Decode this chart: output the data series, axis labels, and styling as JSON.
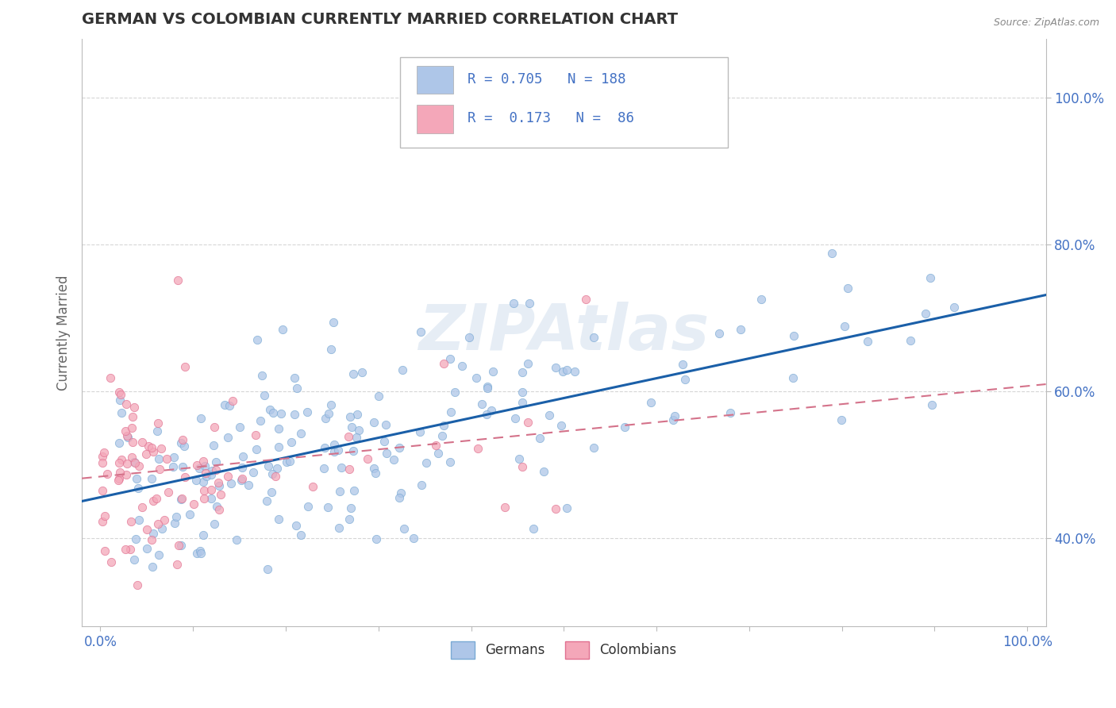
{
  "title": "GERMAN VS COLOMBIAN CURRENTLY MARRIED CORRELATION CHART",
  "source": "Source: ZipAtlas.com",
  "ylabel": "Currently Married",
  "xlabel": "",
  "xlim": [
    -0.02,
    1.02
  ],
  "ylim": [
    0.28,
    1.08
  ],
  "yticks": [
    0.4,
    0.6,
    0.8,
    1.0
  ],
  "ytick_labels": [
    "40.0%",
    "60.0%",
    "80.0%",
    "100.0%"
  ],
  "xtick_labels": [
    "0.0%",
    "",
    "",
    "",
    "",
    "",
    "",
    "",
    "",
    "",
    "100.0%"
  ],
  "german_color": "#aec6e8",
  "german_edge_color": "#7aaad4",
  "colombian_color": "#f4a7b9",
  "colombian_edge_color": "#e07090",
  "german_line_color": "#1a5fa8",
  "colombian_line_color": "#d4728a",
  "R_german": 0.705,
  "N_german": 188,
  "R_colombian": 0.173,
  "N_colombian": 86,
  "watermark": "ZIPAtlas",
  "background_color": "#ffffff",
  "grid_color": "#cccccc",
  "title_color": "#333333",
  "axis_label_color": "#666666",
  "tick_label_color": "#4472c4",
  "legend_r_color": "#4472c4"
}
